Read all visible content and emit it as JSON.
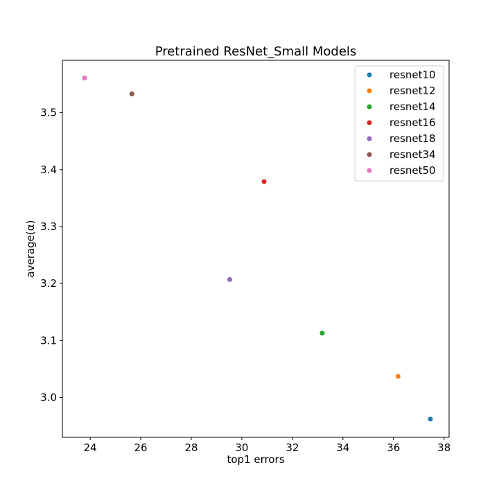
{
  "chart_data": {
    "type": "scatter",
    "title": "Pretrained ResNet_Small Models",
    "xlabel": "top1 errors",
    "ylabel": "average(α)",
    "xlim": [
      22.9,
      38.2
    ],
    "ylim": [
      2.93,
      3.592
    ],
    "xticks": [
      "24",
      "26",
      "28",
      "30",
      "32",
      "34",
      "36",
      "38"
    ],
    "xtick_values": [
      24,
      26,
      28,
      30,
      32,
      34,
      36,
      38
    ],
    "yticks": [
      "3.0",
      "3.1",
      "3.2",
      "3.3",
      "3.4",
      "3.5"
    ],
    "ytick_values": [
      3.0,
      3.1,
      3.2,
      3.3,
      3.4,
      3.5
    ],
    "grid": false,
    "legend_position": "top-right",
    "series": [
      {
        "name": "resnet10",
        "color": "#1f77b4",
        "x": 37.46,
        "y": 2.962
      },
      {
        "name": "resnet12",
        "color": "#ff7f0e",
        "x": 36.18,
        "y": 3.037
      },
      {
        "name": "resnet14",
        "color": "#2ca02c",
        "x": 33.18,
        "y": 3.113
      },
      {
        "name": "resnet16",
        "color": "#d62728",
        "x": 30.88,
        "y": 3.379
      },
      {
        "name": "resnet18",
        "color": "#9467bd",
        "x": 29.52,
        "y": 3.207
      },
      {
        "name": "resnet34",
        "color": "#8c564b",
        "x": 25.65,
        "y": 3.533
      },
      {
        "name": "resnet50",
        "color": "#e377c2",
        "x": 23.78,
        "y": 3.561
      }
    ]
  }
}
